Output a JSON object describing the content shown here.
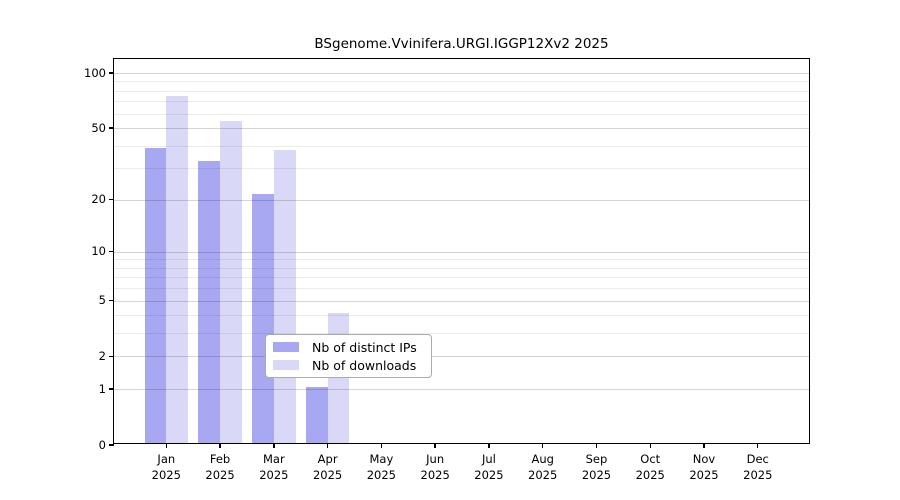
{
  "title": "BSgenome.Vvinifera.URGI.IGGP12Xv2 2025",
  "chart_data": {
    "type": "bar",
    "title": "BSgenome.Vvinifera.URGI.IGGP12Xv2 2025",
    "categories": [
      "Jan 2025",
      "Feb 2025",
      "Mar 2025",
      "Apr 2025",
      "May 2025",
      "Jun 2025",
      "Jul 2025",
      "Aug 2025",
      "Sep 2025",
      "Oct 2025",
      "Nov 2025",
      "Dec 2025"
    ],
    "series": [
      {
        "name": "Nb of distinct IPs",
        "color": "#a8a8f2",
        "values": [
          38,
          32,
          21,
          1,
          0,
          0,
          0,
          0,
          0,
          0,
          0,
          0
        ]
      },
      {
        "name": "Nb of downloads",
        "color": "#d9d9f7",
        "values": [
          73,
          53,
          37,
          4,
          0,
          0,
          0,
          0,
          0,
          0,
          0,
          0
        ]
      }
    ],
    "xlabel": "",
    "ylabel": "",
    "y_scale": "log1p",
    "ylim": [
      0,
      100
    ],
    "y_ticks": [
      0,
      1,
      2,
      5,
      10,
      20,
      50,
      100
    ],
    "y_minor_gridlines": [
      3,
      4,
      6,
      7,
      8,
      9,
      30,
      40,
      60,
      70,
      80,
      90
    ],
    "grid": "horizontal",
    "legend_position": "inside-bottom-center"
  },
  "legend": {
    "items": [
      {
        "label": "Nb of distinct IPs",
        "color": "#a8a8f2"
      },
      {
        "label": "Nb of downloads",
        "color": "#d9d9f7"
      }
    ]
  }
}
